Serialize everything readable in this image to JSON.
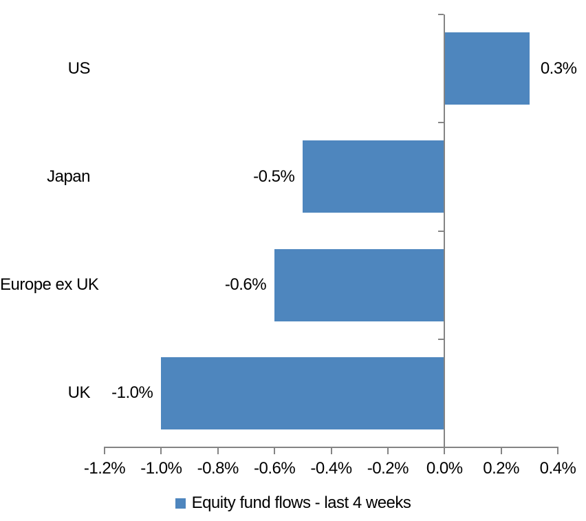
{
  "chart_data": {
    "type": "bar",
    "orientation": "horizontal",
    "title": "",
    "categories": [
      "US",
      "Japan",
      "Europe ex UK",
      "UK"
    ],
    "values": [
      0.3,
      -0.5,
      -0.6,
      -1.0
    ],
    "data_labels": [
      "0.3%",
      "-0.5%",
      "-0.6%",
      "-1.0%"
    ],
    "series_name": "Equity fund flows - last 4 weeks",
    "xlabel": "",
    "ylabel": "",
    "xlim": [
      -1.2,
      0.4
    ],
    "x_ticks": [
      -1.2,
      -1.0,
      -0.8,
      -0.6,
      -0.4,
      -0.2,
      0.0,
      0.2,
      0.4
    ],
    "x_tick_labels": [
      "-1.2%",
      "-1.0%",
      "-0.8%",
      "-0.6%",
      "-0.4%",
      "-0.2%",
      "0.0%",
      "0.2%",
      "0.4%"
    ],
    "legend_position": "bottom",
    "grid": false,
    "bar_color": "#4E86BE",
    "axis_color": "#848484",
    "text_color": "#000000"
  }
}
